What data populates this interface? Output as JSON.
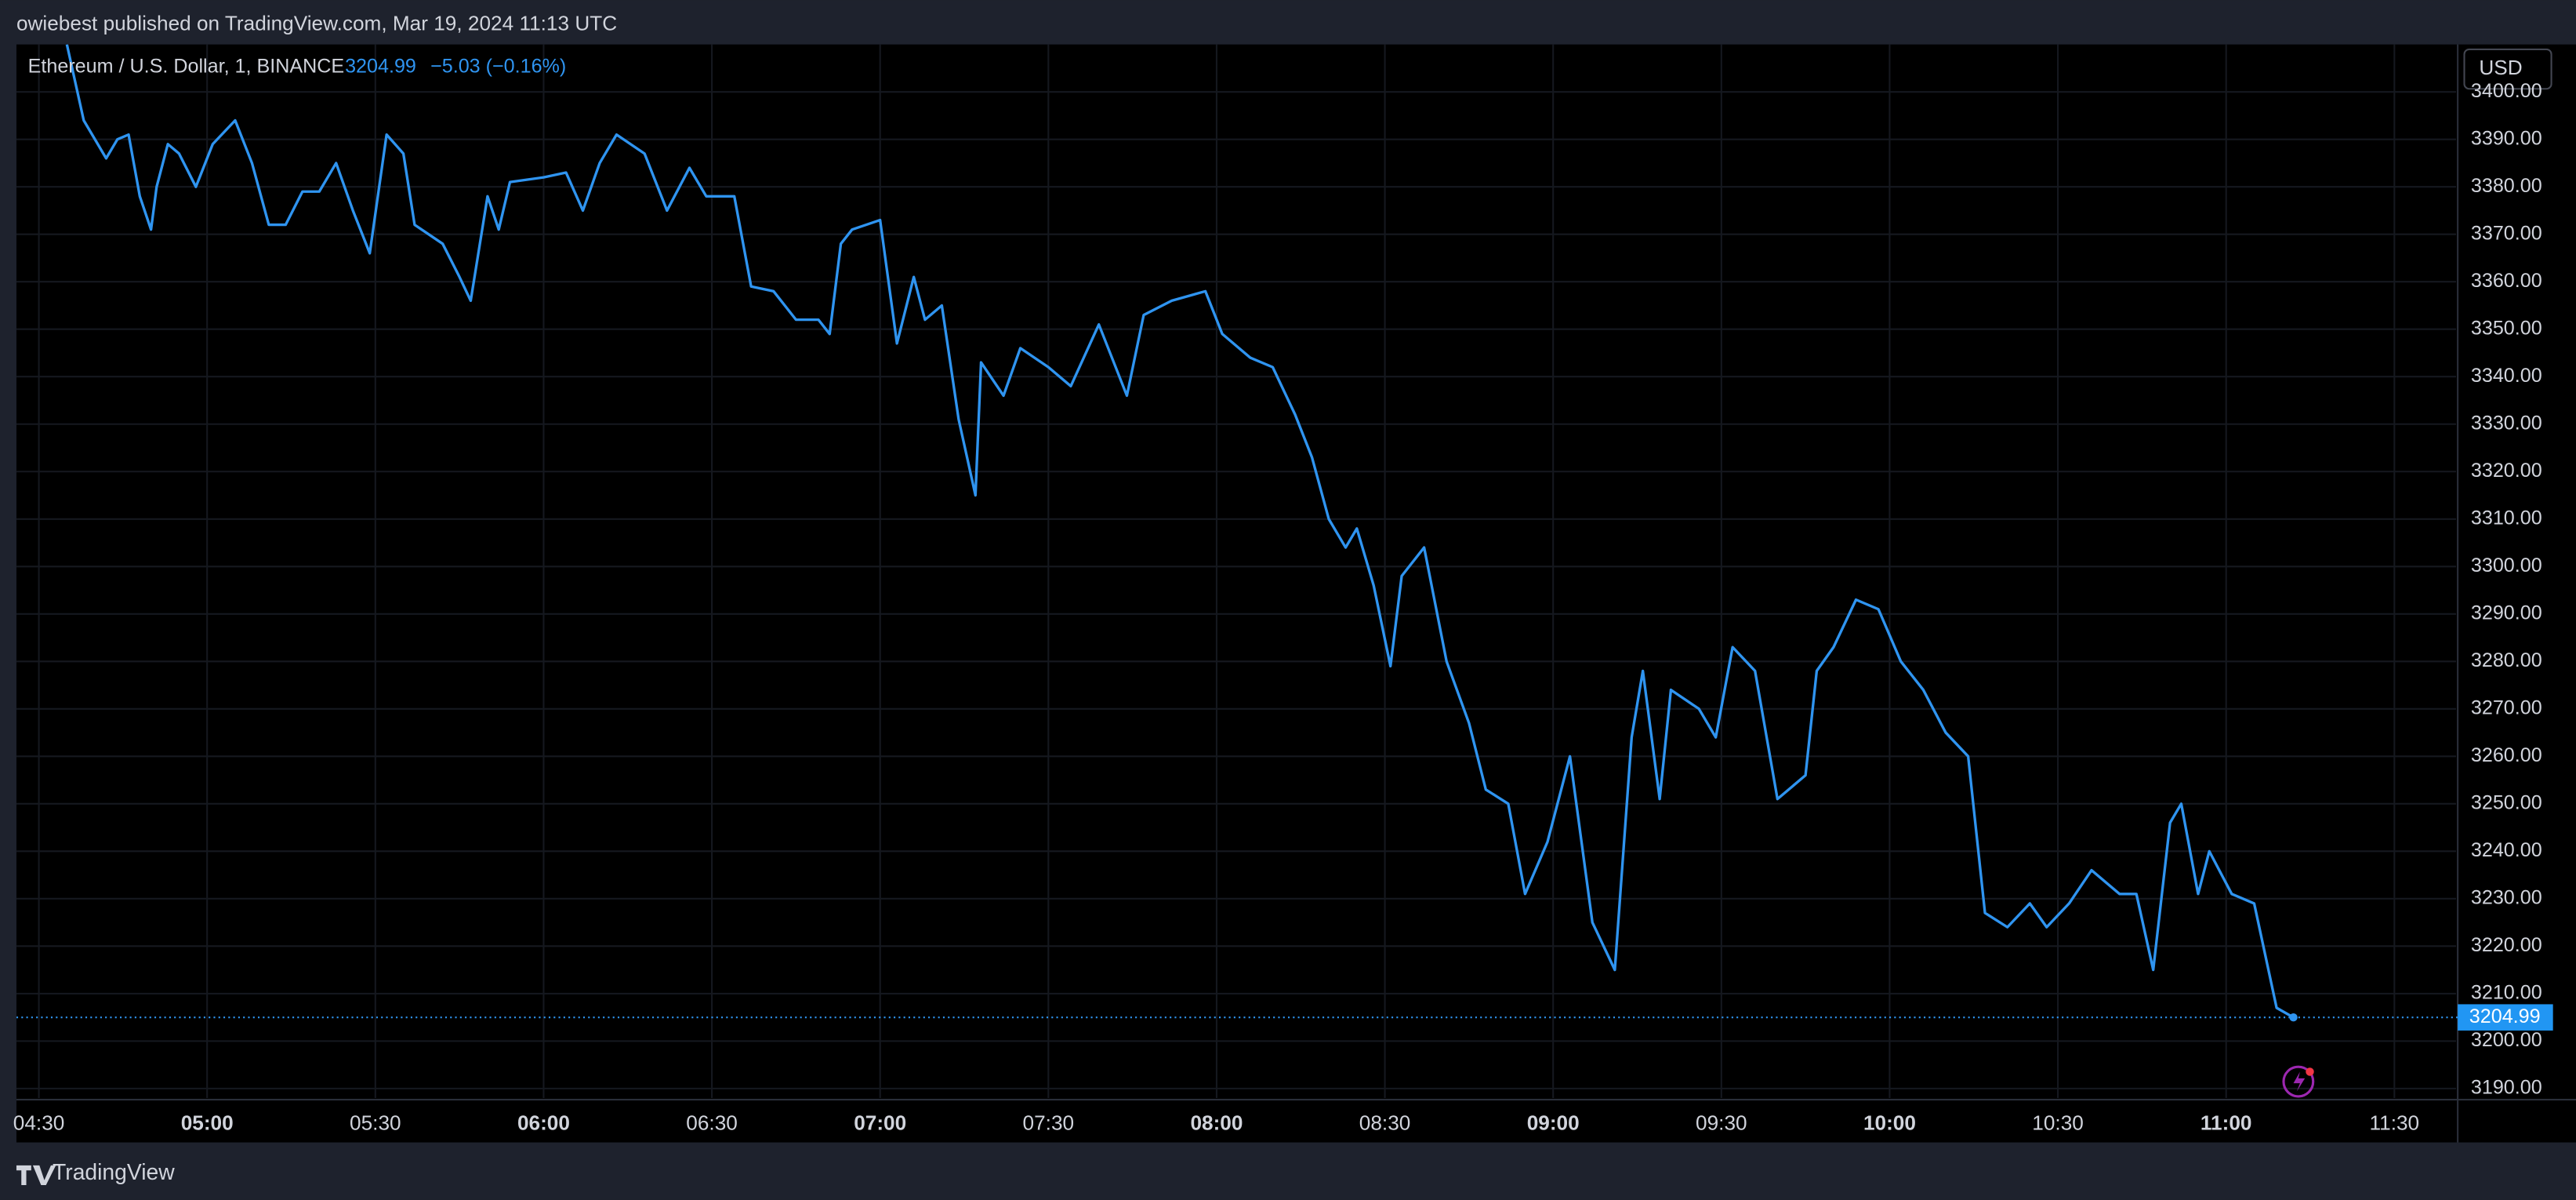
{
  "header": {
    "published": "owiebest published on TradingView.com, Mar 19, 2024 11:13 UTC"
  },
  "footer": {
    "brand": "TradingView"
  },
  "chart_data": {
    "type": "line",
    "title": "Ethereum / U.S. Dollar, 1, BINANCE",
    "change": "−5.03 (−0.16%)",
    "currency": "USD",
    "color": "#2f94f0",
    "grid": true,
    "x": [
      "04:35",
      "04:38",
      "04:42",
      "04:44",
      "04:46",
      "04:48",
      "04:50",
      "04:51",
      "04:53",
      "04:55",
      "04:58",
      "05:01",
      "05:05",
      "05:08",
      "05:11",
      "05:14",
      "05:17",
      "05:20",
      "05:23",
      "05:26",
      "05:29",
      "05:32",
      "05:35",
      "05:37",
      "05:42",
      "05:45",
      "05:47",
      "05:50",
      "05:52",
      "05:54",
      "06:00",
      "06:04",
      "06:07",
      "06:10",
      "06:13",
      "06:18",
      "06:22",
      "06:26",
      "06:29",
      "06:34",
      "06:37",
      "06:41",
      "06:45",
      "06:49",
      "06:51",
      "06:53",
      "06:55",
      "07:00",
      "07:03",
      "07:06",
      "07:08",
      "07:11",
      "07:14",
      "07:17",
      "07:18",
      "07:22",
      "07:25",
      "07:30",
      "07:34",
      "07:39",
      "07:44",
      "07:47",
      "07:52",
      "07:58",
      "08:01",
      "08:06",
      "08:10",
      "08:14",
      "08:17",
      "08:20",
      "08:23",
      "08:25",
      "08:28",
      "08:31",
      "08:33",
      "08:37",
      "08:41",
      "08:45",
      "08:48",
      "08:52",
      "08:55",
      "08:59",
      "09:03",
      "09:07",
      "09:11",
      "09:14",
      "09:16",
      "09:19",
      "09:21",
      "09:26",
      "09:29",
      "09:32",
      "09:36",
      "09:40",
      "09:45",
      "09:47",
      "09:50",
      "09:54",
      "09:58",
      "10:02",
      "10:06",
      "10:10",
      "10:14",
      "10:17",
      "10:21",
      "10:25",
      "10:28",
      "10:32",
      "10:36",
      "10:41",
      "10:44",
      "10:47",
      "10:50",
      "10:52",
      "10:55",
      "10:57",
      "11:01",
      "11:05",
      "11:09",
      "11:12"
    ],
    "values": [
      3410,
      3394,
      3386,
      3390,
      3391,
      3378,
      3371,
      3380,
      3389,
      3387,
      3380,
      3389,
      3394,
      3385,
      3372,
      3372,
      3379,
      3379,
      3385,
      3375,
      3366,
      3391,
      3387,
      3372,
      3368,
      3361,
      3356,
      3378,
      3371,
      3381,
      3382,
      3383,
      3375,
      3385,
      3391,
      3387,
      3375,
      3384,
      3378,
      3378,
      3359,
      3358,
      3352,
      3352,
      3349,
      3368,
      3371,
      3373,
      3347,
      3361,
      3352,
      3355,
      3331,
      3315,
      3343,
      3336,
      3346,
      3342,
      3338,
      3351,
      3336,
      3353,
      3356,
      3358,
      3349,
      3344,
      3342,
      3332,
      3323,
      3310,
      3304,
      3308,
      3296,
      3279,
      3298,
      3304,
      3280,
      3267,
      3253,
      3250,
      3231,
      3242,
      3260,
      3225,
      3215,
      3264,
      3278,
      3251,
      3274,
      3270,
      3264,
      3283,
      3278,
      3251,
      3256,
      3278,
      3283,
      3293,
      3291,
      3280,
      3274,
      3265,
      3260,
      3227,
      3224,
      3229,
      3224,
      3229,
      3236,
      3231,
      3231,
      3215,
      3246,
      3250,
      3231,
      3240,
      3231,
      3229,
      3207,
      3204.99
    ],
    "xlim": [
      "04:26",
      "11:41"
    ],
    "xticks": [
      "04:30",
      "05:00",
      "05:30",
      "06:00",
      "06:30",
      "07:00",
      "07:30",
      "08:00",
      "08:30",
      "09:00",
      "09:30",
      "10:00",
      "10:30",
      "11:00",
      "11:30"
    ],
    "ylim": [
      3188,
      3410
    ],
    "yticks": [
      {
        "value": 3190,
        "label": "3190.00"
      },
      {
        "value": 3200,
        "label": "3200.00"
      },
      {
        "value": 3210,
        "label": "3210.00"
      },
      {
        "value": 3220,
        "label": "3220.00"
      },
      {
        "value": 3230,
        "label": "3230.00"
      },
      {
        "value": 3240,
        "label": "3240.00"
      },
      {
        "value": 3250,
        "label": "3250.00"
      },
      {
        "value": 3260,
        "label": "3260.00"
      },
      {
        "value": 3270,
        "label": "3270.00"
      },
      {
        "value": 3280,
        "label": "3280.00"
      },
      {
        "value": 3290,
        "label": "3290.00"
      },
      {
        "value": 3300,
        "label": "3300.00"
      },
      {
        "value": 3310,
        "label": "3310.00"
      },
      {
        "value": 3320,
        "label": "3320.00"
      },
      {
        "value": 3330,
        "label": "3330.00"
      },
      {
        "value": 3340,
        "label": "3340.00"
      },
      {
        "value": 3350,
        "label": "3350.00"
      },
      {
        "value": 3360,
        "label": "3360.00"
      },
      {
        "value": 3370,
        "label": "3370.00"
      },
      {
        "value": 3380,
        "label": "3380.00"
      },
      {
        "value": 3390,
        "label": "3390.00"
      },
      {
        "value": 3400,
        "label": "3400.00"
      }
    ]
  }
}
